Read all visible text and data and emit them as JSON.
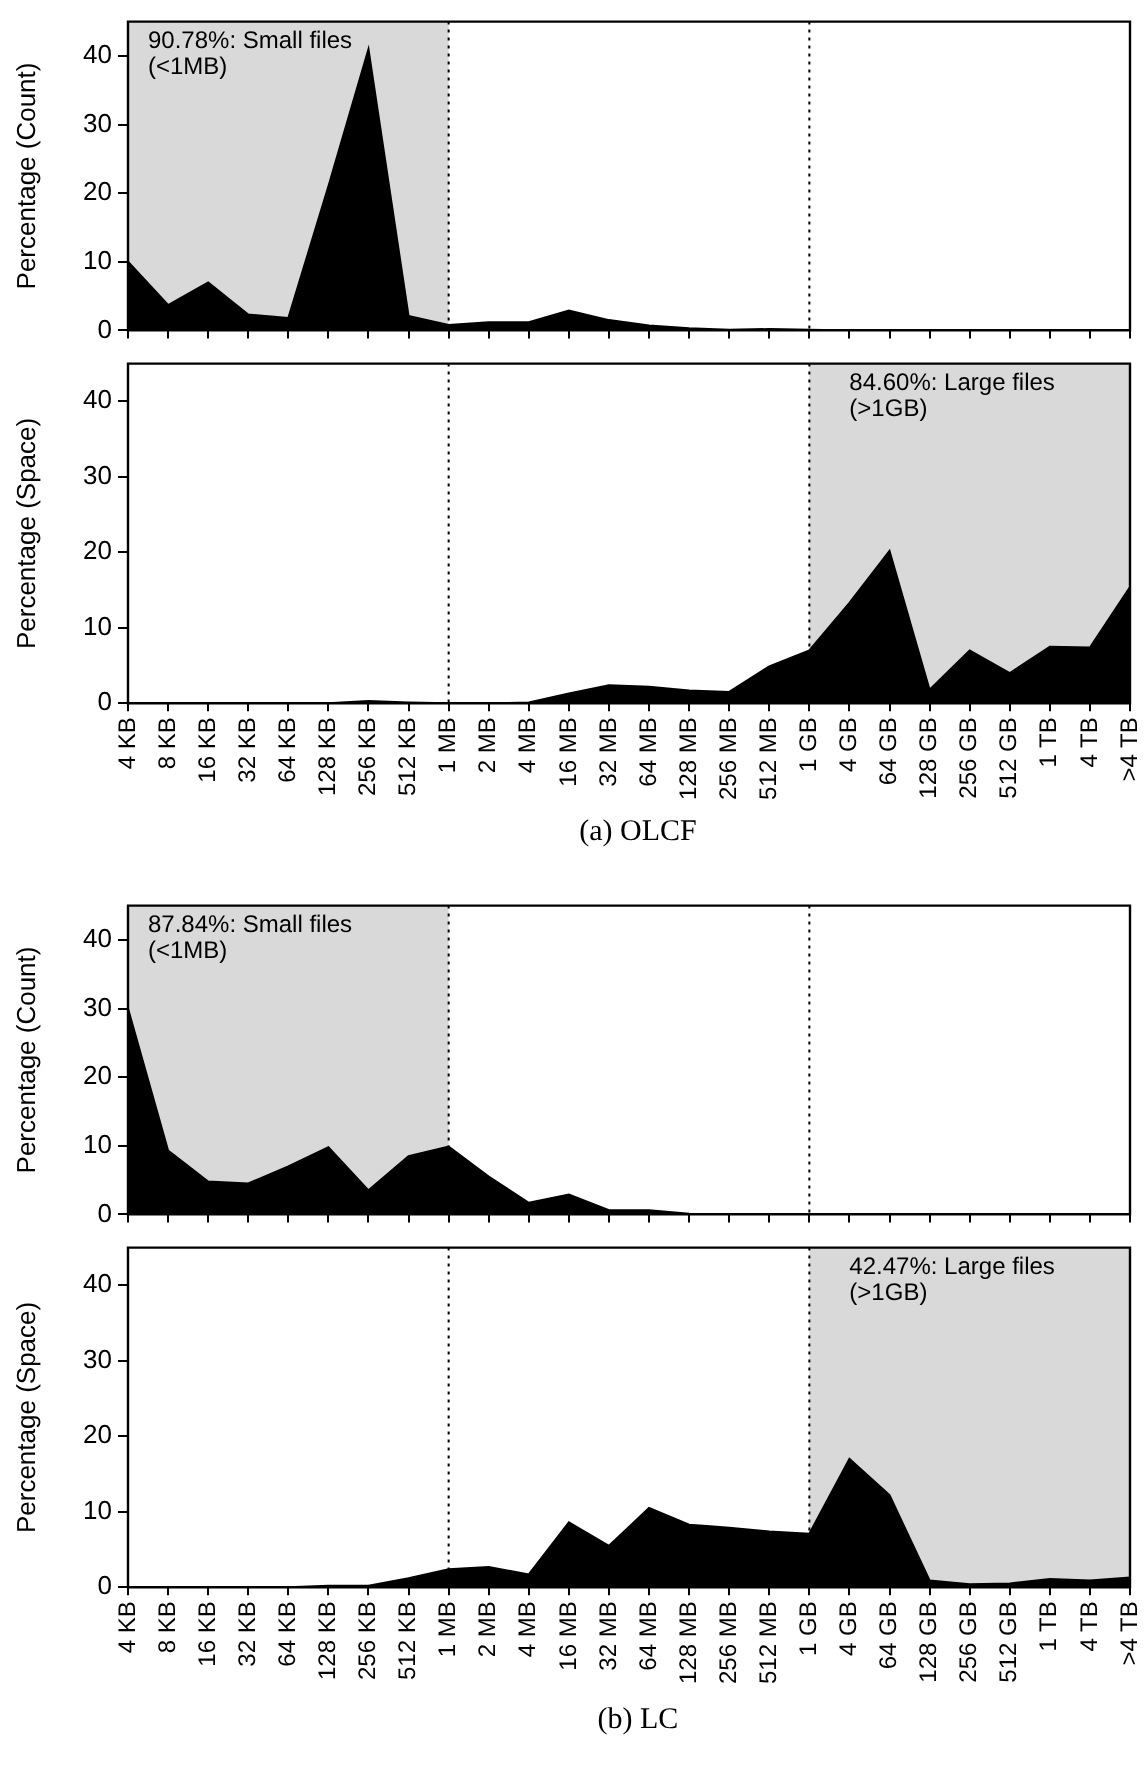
{
  "chart_data": [
    {
      "type": "area",
      "ylabel": "Percentage (Count)",
      "categories": [
        "4 KB",
        "8 KB",
        "16 KB",
        "32 KB",
        "64 KB",
        "128 KB",
        "256 KB",
        "512 KB",
        "1 MB",
        "2 MB",
        "4 MB",
        "16 MB",
        "32 MB",
        "64 MB",
        "128 MB",
        "256 MB",
        "512 MB",
        "1 GB",
        "4 GB",
        "64 GB",
        "128 GB",
        "256 GB",
        "512 GB",
        "1 TB",
        "4 TB",
        ">4 TB"
      ],
      "series": [
        {
          "color": "#000000",
          "values": [
            10,
            3.7,
            7,
            2.3,
            1.8,
            21,
            41,
            2.1,
            0.8,
            1.2,
            1.2,
            2.9,
            1.5,
            0.7,
            0.3,
            0.1,
            0.2,
            0.1,
            0,
            0,
            0,
            0,
            0,
            0,
            0,
            0
          ]
        }
      ],
      "ylim": [
        0,
        45
      ],
      "yticks": [
        0,
        10,
        20,
        30,
        40
      ],
      "marker": "none",
      "tick_labels": "y",
      "bands": [
        {
          "axis": "x",
          "from": "4 KB",
          "to": "1 MB",
          "label": "90.78%: Small files\n(<1MB)",
          "color": "#d9d9d9"
        }
      ],
      "ref_lines": [
        {
          "axis": "x",
          "value": "1 MB",
          "line_style": "dotted"
        },
        {
          "axis": "x",
          "value": "1 GB",
          "line_style": "dotted"
        }
      ]
    },
    {
      "type": "area",
      "ylabel": "Percentage (Space)",
      "categories": [
        "4 KB",
        "8 KB",
        "16 KB",
        "32 KB",
        "64 KB",
        "128 KB",
        "256 KB",
        "512 KB",
        "1 MB",
        "2 MB",
        "4 MB",
        "16 MB",
        "32 MB",
        "64 MB",
        "128 MB",
        "256 MB",
        "512 MB",
        "1 GB",
        "4 GB",
        "64 GB",
        "128 GB",
        "256 GB",
        "512 GB",
        "1 TB",
        "4 TB",
        ">4 TB"
      ],
      "series": [
        {
          "color": "#000000",
          "values": [
            0,
            0,
            0,
            0,
            0,
            0,
            0.3,
            0.1,
            0,
            0,
            0.1,
            1.3,
            2.4,
            2.2,
            1.7,
            1.5,
            4.9,
            7,
            13.3,
            20.2,
            1.8,
            7,
            4,
            7.5,
            7.4,
            15.4
          ]
        }
      ],
      "ylim": [
        0,
        45
      ],
      "yticks": [
        0,
        10,
        20,
        30,
        40
      ],
      "marker": "none",
      "bands": [
        {
          "axis": "x",
          "from": "1 GB",
          "to": ">4 TB",
          "label": "84.60%: Large files\n(>1GB)",
          "color": "#d9d9d9"
        }
      ],
      "ref_lines": [
        {
          "axis": "x",
          "value": "1 MB",
          "line_style": "dotted"
        },
        {
          "axis": "x",
          "value": "1 GB",
          "line_style": "dotted"
        }
      ],
      "annotations": [
        "(a) OLCF"
      ]
    },
    {
      "type": "area",
      "ylabel": "Percentage (Count)",
      "categories": [
        "4 KB",
        "8 KB",
        "16 KB",
        "32 KB",
        "64 KB",
        "128 KB",
        "256 KB",
        "512 KB",
        "1 MB",
        "2 MB",
        "4 MB",
        "16 MB",
        "32 MB",
        "64 MB",
        "128 MB",
        "256 MB",
        "512 MB",
        "1 GB",
        "4 GB",
        "64 GB",
        "128 GB",
        "256 GB",
        "512 GB",
        "1 TB",
        "4 TB",
        ">4 TB"
      ],
      "series": [
        {
          "color": "#000000",
          "values": [
            30,
            9.3,
            4.8,
            4.5,
            7,
            9.8,
            3.5,
            8.5,
            9.9,
            5.5,
            1.7,
            2.9,
            0.6,
            0.6,
            0.1,
            0,
            0,
            0,
            0,
            0,
            0,
            0,
            0,
            0,
            0,
            0
          ]
        }
      ],
      "ylim": [
        0,
        45
      ],
      "yticks": [
        0,
        10,
        20,
        30,
        40
      ],
      "marker": "none",
      "tick_labels": "y",
      "bands": [
        {
          "axis": "x",
          "from": "4 KB",
          "to": "1 MB",
          "label": "87.84%: Small files\n(<1MB)",
          "color": "#d9d9d9"
        }
      ],
      "ref_lines": [
        {
          "axis": "x",
          "value": "1 MB",
          "line_style": "dotted"
        },
        {
          "axis": "x",
          "value": "1 GB",
          "line_style": "dotted"
        }
      ]
    },
    {
      "type": "area",
      "ylabel": "Percentage (Space)",
      "categories": [
        "4 KB",
        "8 KB",
        "16 KB",
        "32 KB",
        "64 KB",
        "128 KB",
        "256 KB",
        "512 KB",
        "1 MB",
        "2 MB",
        "4 MB",
        "16 MB",
        "32 MB",
        "64 MB",
        "128 MB",
        "256 MB",
        "512 MB",
        "1 GB",
        "4 GB",
        "64 GB",
        "128 GB",
        "256 GB",
        "512 GB",
        "1 TB",
        "4 TB",
        ">4 TB"
      ],
      "series": [
        {
          "color": "#000000",
          "values": [
            0,
            0,
            0,
            0,
            0,
            0.2,
            0.2,
            1.2,
            2.4,
            2.7,
            1.7,
            8.6,
            5.5,
            10.5,
            8.3,
            7.9,
            7.4,
            7.1,
            17,
            12.2,
            0.9,
            0.4,
            0.5,
            1.1,
            0.9,
            1.3
          ]
        }
      ],
      "ylim": [
        0,
        45
      ],
      "yticks": [
        0,
        10,
        20,
        30,
        40
      ],
      "marker": "none",
      "bands": [
        {
          "axis": "x",
          "from": "1 GB",
          "to": ">4 TB",
          "label": "42.47%: Large files\n(>1GB)",
          "color": "#d9d9d9"
        }
      ],
      "ref_lines": [
        {
          "axis": "x",
          "value": "1 MB",
          "line_style": "dotted"
        },
        {
          "axis": "x",
          "value": "1 GB",
          "line_style": "dotted"
        }
      ],
      "annotations": [
        "(b) LC"
      ]
    }
  ]
}
